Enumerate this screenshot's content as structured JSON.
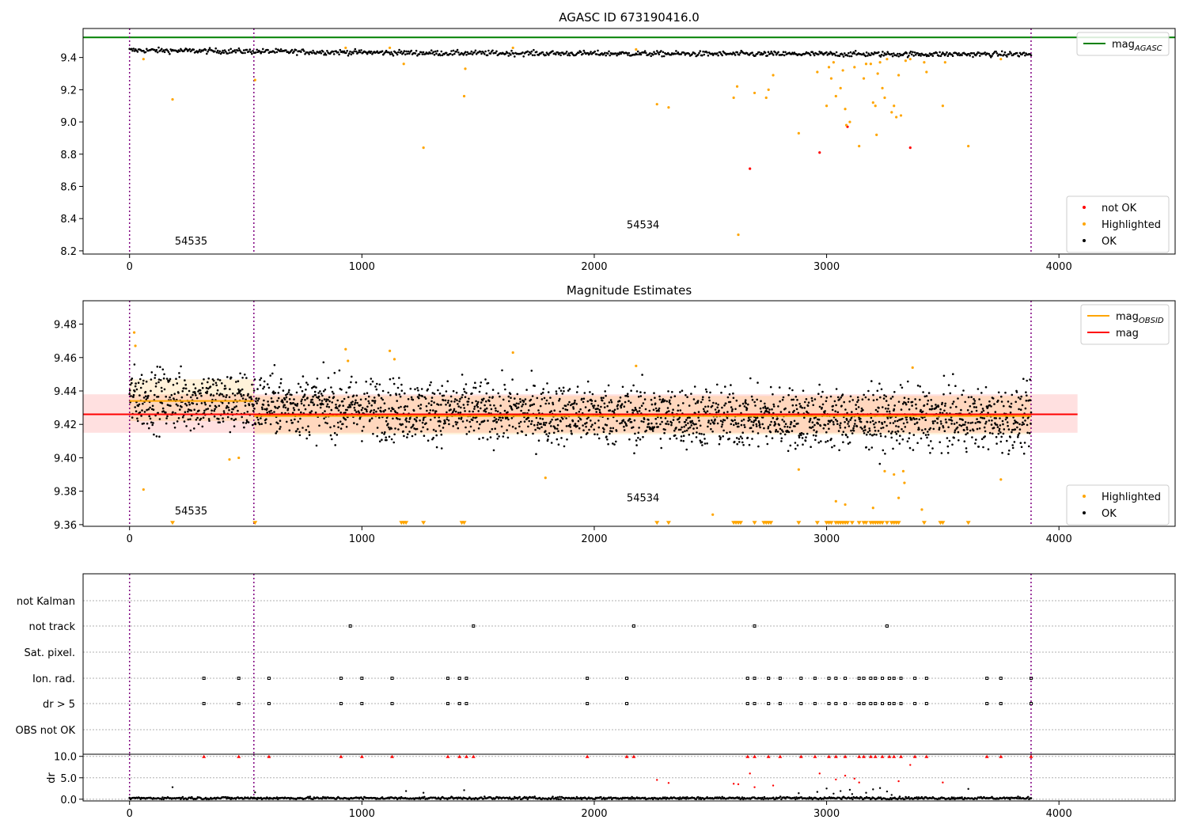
{
  "chart_data": [
    {
      "type": "scatter",
      "title": "AGASC ID 673190416.0",
      "xlim": [
        -200,
        4500
      ],
      "ylim": [
        8.18,
        9.58
      ],
      "xticks": [
        0,
        1000,
        2000,
        3000,
        4000
      ],
      "yticks": [
        8.2,
        8.4,
        8.6,
        8.8,
        9.0,
        9.2,
        9.4
      ],
      "vlines": [
        0,
        535,
        3880
      ],
      "hlines": [
        {
          "name": "mag_AGASC",
          "y": 9.525,
          "color": "#008000"
        }
      ],
      "annotations": [
        {
          "text": "54535",
          "x": 265,
          "y": 8.24
        },
        {
          "text": "54534",
          "x": 2210,
          "y": 8.34
        }
      ],
      "legend_top": {
        "position": "top-right",
        "entries": [
          {
            "label": "mag",
            "sub": "AGASC",
            "color": "#008000"
          }
        ]
      },
      "legend_bottom": {
        "position": "lower-right",
        "entries": [
          {
            "label": "not OK",
            "color": "#ff0000"
          },
          {
            "label": "Highlighted",
            "color": "#ffa500"
          },
          {
            "label": "OK",
            "color": "#000000"
          }
        ]
      },
      "ok_band": {
        "x": [
          0,
          3880
        ],
        "center": [
          9.445,
          9.428,
          9.422,
          9.42
        ],
        "noise": 0.008
      },
      "series": [
        {
          "name": "not OK",
          "color": "#ff0000",
          "points": [
            [
              2970,
              8.81
            ],
            [
              3090,
              8.97
            ],
            [
              3360,
              8.84
            ],
            [
              2670,
              8.71
            ]
          ]
        },
        {
          "name": "Highlighted",
          "color": "#ffa500",
          "points": [
            [
              60,
              9.39
            ],
            [
              185,
              9.14
            ],
            [
              540,
              9.26
            ],
            [
              1265,
              8.84
            ],
            [
              1440,
              9.16
            ],
            [
              1445,
              9.33
            ],
            [
              1180,
              9.36
            ],
            [
              2270,
              9.11
            ],
            [
              2320,
              9.09
            ],
            [
              2600,
              9.15
            ],
            [
              2615,
              9.22
            ],
            [
              2620,
              8.3
            ],
            [
              2690,
              9.18
            ],
            [
              2740,
              9.15
            ],
            [
              2750,
              9.2
            ],
            [
              2770,
              9.29
            ],
            [
              2880,
              8.93
            ],
            [
              2960,
              9.31
            ],
            [
              3000,
              9.1
            ],
            [
              3010,
              9.34
            ],
            [
              3020,
              9.27
            ],
            [
              3030,
              9.37
            ],
            [
              3040,
              9.16
            ],
            [
              3060,
              9.21
            ],
            [
              3070,
              9.32
            ],
            [
              3080,
              9.08
            ],
            [
              3085,
              8.98
            ],
            [
              3100,
              9.0
            ],
            [
              3120,
              9.34
            ],
            [
              3140,
              8.85
            ],
            [
              3160,
              9.27
            ],
            [
              3170,
              9.36
            ],
            [
              3190,
              9.36
            ],
            [
              3200,
              9.12
            ],
            [
              3210,
              9.1
            ],
            [
              3215,
              8.92
            ],
            [
              3220,
              9.3
            ],
            [
              3230,
              9.37
            ],
            [
              3240,
              9.21
            ],
            [
              3250,
              9.15
            ],
            [
              3260,
              9.39
            ],
            [
              3280,
              9.06
            ],
            [
              3290,
              9.1
            ],
            [
              3300,
              9.03
            ],
            [
              3310,
              9.29
            ],
            [
              3320,
              9.04
            ],
            [
              3340,
              9.38
            ],
            [
              3360,
              9.39
            ],
            [
              3420,
              9.37
            ],
            [
              3430,
              9.31
            ],
            [
              3500,
              9.1
            ],
            [
              3510,
              9.37
            ],
            [
              3610,
              8.85
            ],
            [
              3750,
              9.39
            ],
            [
              930,
              9.46
            ],
            [
              1120,
              9.46
            ],
            [
              1650,
              9.46
            ],
            [
              2180,
              9.45
            ]
          ]
        }
      ]
    },
    {
      "type": "scatter",
      "title": "Magnitude Estimates",
      "xlim": [
        -200,
        4500
      ],
      "ylim": [
        9.359,
        9.494
      ],
      "xticks": [
        0,
        1000,
        2000,
        3000,
        4000
      ],
      "yticks": [
        9.36,
        9.38,
        9.4,
        9.42,
        9.44,
        9.46,
        9.48
      ],
      "vlines": [
        0,
        535,
        3880
      ],
      "annotations": [
        {
          "text": "54535",
          "x": 265,
          "y": 9.366
        },
        {
          "text": "54534",
          "x": 2210,
          "y": 9.374
        }
      ],
      "legend_top": {
        "position": "top-right",
        "entries": [
          {
            "label": "mag",
            "sub": "OBSID",
            "color": "#ffa500"
          },
          {
            "label": "mag",
            "sub": "",
            "color": "#ff0000"
          }
        ]
      },
      "legend_bottom": {
        "position": "lower-right",
        "entries": [
          {
            "label": "Highlighted",
            "color": "#ffa500"
          },
          {
            "label": "OK",
            "color": "#000000"
          }
        ]
      },
      "mag_line": {
        "y": 9.426,
        "band": [
          9.415,
          9.438
        ],
        "x": [
          -200,
          4080
        ],
        "color": "#ff0000"
      },
      "obsid_lines": [
        {
          "x": [
            0,
            535
          ],
          "y": 9.434,
          "band": [
            9.422,
            9.447
          ]
        },
        {
          "x": [
            535,
            3880
          ],
          "y": 9.425,
          "band": [
            9.414,
            9.437
          ]
        }
      ],
      "ok_band": {
        "x": [
          0,
          3880
        ],
        "center": [
          9.436,
          9.428,
          9.424,
          9.423
        ],
        "noise": 0.009
      },
      "series": [
        {
          "name": "Highlighted",
          "color": "#ffa500",
          "points": [
            [
              20,
              9.475
            ],
            [
              25,
              9.467
            ],
            [
              60,
              9.381
            ],
            [
              430,
              9.399
            ],
            [
              470,
              9.4
            ],
            [
              930,
              9.465
            ],
            [
              940,
              9.458
            ],
            [
              1120,
              9.464
            ],
            [
              1140,
              9.459
            ],
            [
              1650,
              9.463
            ],
            [
              1790,
              9.388
            ],
            [
              2180,
              9.455
            ],
            [
              2510,
              9.366
            ],
            [
              2880,
              9.393
            ],
            [
              3040,
              9.374
            ],
            [
              3080,
              9.372
            ],
            [
              3200,
              9.37
            ],
            [
              3250,
              9.392
            ],
            [
              3290,
              9.39
            ],
            [
              3330,
              9.392
            ],
            [
              3335,
              9.385
            ],
            [
              3310,
              9.376
            ],
            [
              3410,
              9.369
            ],
            [
              3370,
              9.454
            ],
            [
              3750,
              9.387
            ]
          ]
        },
        {
          "name": "Highlighted (below axis)",
          "color": "#ffa500",
          "marker": "triangle-down",
          "y": 9.361,
          "x": [
            185,
            540,
            1170,
            1180,
            1190,
            1265,
            1430,
            1440,
            2270,
            2320,
            2600,
            2610,
            2620,
            2630,
            2690,
            2730,
            2740,
            2750,
            2760,
            2880,
            2960,
            3000,
            3010,
            3020,
            3040,
            3050,
            3060,
            3070,
            3080,
            3090,
            3110,
            3140,
            3160,
            3170,
            3190,
            3200,
            3210,
            3220,
            3230,
            3240,
            3260,
            3280,
            3290,
            3300,
            3310,
            3420,
            3490,
            3500,
            3610
          ]
        }
      ]
    },
    {
      "type": "scatter",
      "title": "",
      "xlim": [
        -200,
        4500
      ],
      "categories": [
        "not Kalman",
        "not track",
        "Sat. pixel.",
        "Ion. rad.",
        "dr > 5",
        "OBS not OK"
      ],
      "vlines": [
        0,
        535,
        3880
      ],
      "flags": {
        "not Kalman": [],
        "not track": [
          950,
          1480,
          2170,
          2690,
          3260
        ],
        "Sat. pixel.": [],
        "Ion. rad.": [
          320,
          470,
          600,
          910,
          1000,
          1130,
          1370,
          1420,
          1450,
          1970,
          2140,
          2660,
          2690,
          2750,
          2800,
          2890,
          2950,
          3010,
          3040,
          3080,
          3140,
          3160,
          3190,
          3210,
          3240,
          3270,
          3290,
          3320,
          3380,
          3430,
          3690,
          3750,
          3880
        ],
        "dr > 5": [
          320,
          470,
          600,
          910,
          1000,
          1130,
          1370,
          1420,
          1450,
          1970,
          2140,
          2660,
          2690,
          2750,
          2800,
          2890,
          2950,
          3010,
          3040,
          3080,
          3140,
          3160,
          3190,
          3210,
          3240,
          3270,
          3290,
          3320,
          3380,
          3430,
          3690,
          3750,
          3880
        ],
        "OBS not OK": []
      }
    },
    {
      "type": "scatter",
      "title": "",
      "ylabel": "dr",
      "xlim": [
        -200,
        4500
      ],
      "ylim": [
        -0.4,
        10.5
      ],
      "xticks": [
        0,
        1000,
        2000,
        3000,
        4000
      ],
      "yticks": [
        0,
        5,
        10
      ],
      "vlines": [
        0,
        535,
        3880
      ],
      "ok_band": {
        "x": [
          0,
          3880
        ],
        "center": [
          0.25,
          0.25,
          0.25,
          0.25
        ],
        "noise": 0.15
      },
      "capped": {
        "y": 10,
        "color": "#ff0000",
        "x": [
          320,
          470,
          600,
          910,
          1000,
          1130,
          1370,
          1420,
          1450,
          1480,
          1970,
          2140,
          2170,
          2660,
          2690,
          2750,
          2800,
          2890,
          2950,
          3010,
          3040,
          3080,
          3140,
          3160,
          3190,
          3210,
          3240,
          3270,
          3290,
          3320,
          3380,
          3430,
          3690,
          3750,
          3880
        ]
      },
      "series": [
        {
          "name": "dr high",
          "color": "#ff0000",
          "points": [
            [
              2270,
              4.5
            ],
            [
              2320,
              3.8
            ],
            [
              2600,
              3.6
            ],
            [
              2620,
              3.5
            ],
            [
              2670,
              6.0
            ],
            [
              2690,
              2.8
            ],
            [
              2770,
              3.2
            ],
            [
              2970,
              6.0
            ],
            [
              3040,
              4.6
            ],
            [
              3080,
              5.5
            ],
            [
              3120,
              4.8
            ],
            [
              3140,
              3.9
            ],
            [
              3310,
              4.2
            ],
            [
              3360,
              8.0
            ],
            [
              3500,
              3.9
            ]
          ]
        },
        {
          "name": "dr mid",
          "color": "#000000",
          "points": [
            [
              185,
              2.8
            ],
            [
              540,
              1.6
            ],
            [
              1190,
              1.9
            ],
            [
              1265,
              1.5
            ],
            [
              1440,
              2.1
            ],
            [
              2880,
              1.4
            ],
            [
              2960,
              1.7
            ],
            [
              3000,
              2.5
            ],
            [
              3030,
              1.3
            ],
            [
              3060,
              1.9
            ],
            [
              3100,
              2.2
            ],
            [
              3110,
              1.2
            ],
            [
              3170,
              1.5
            ],
            [
              3200,
              2.3
            ],
            [
              3230,
              2.6
            ],
            [
              3260,
              1.8
            ],
            [
              3280,
              1.0
            ],
            [
              3610,
              2.4
            ]
          ]
        }
      ]
    }
  ]
}
